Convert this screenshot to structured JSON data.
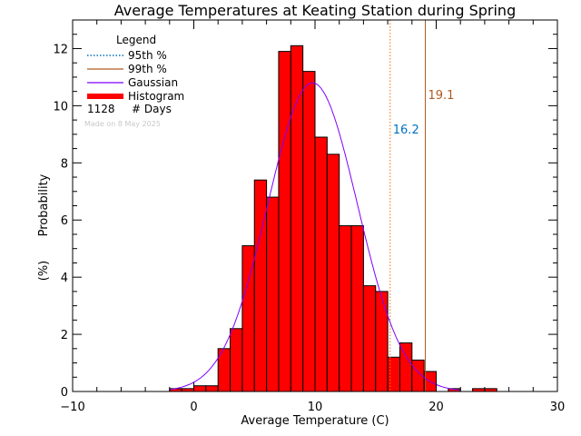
{
  "chart_data": {
    "type": "bar",
    "title": "Average Temperatures at Keating Station during Spring",
    "xlabel": "Average Temperature (C)",
    "ylabel_line1": "Probability",
    "ylabel_line2": "(%)",
    "xlim": [
      -10,
      30
    ],
    "ylim": [
      0,
      13
    ],
    "x_ticks": [
      -10,
      0,
      10,
      20,
      30
    ],
    "y_ticks": [
      0,
      2,
      4,
      6,
      8,
      10,
      12
    ],
    "bin_width": 1,
    "histogram": {
      "name": "Histogram",
      "bin_left_edges": [
        -2,
        -1,
        0,
        1,
        2,
        3,
        4,
        5,
        6,
        7,
        8,
        9,
        10,
        11,
        12,
        13,
        14,
        15,
        16,
        17,
        18,
        19,
        20,
        21,
        22,
        23,
        24
      ],
      "values": [
        0.1,
        0.1,
        0.2,
        0.2,
        1.5,
        2.2,
        5.1,
        7.4,
        6.8,
        11.9,
        12.1,
        11.2,
        8.9,
        8.3,
        5.8,
        5.8,
        3.7,
        3.5,
        1.2,
        1.7,
        1.1,
        0.7,
        0.0,
        0.1,
        0.0,
        0.1,
        0.1
      ],
      "color": "#ff0000"
    },
    "gaussian": {
      "name": "Gaussian",
      "mean": 9.8,
      "sd": 3.7,
      "peak": 10.8,
      "color": "#8000ff"
    },
    "percentiles": [
      {
        "name": "95th %",
        "value": 16.2,
        "label": "16.2",
        "color": "#ff6a00",
        "label_color": "#0070c0",
        "style": "dotted"
      },
      {
        "name": "99th %",
        "value": 19.1,
        "label": "19.1",
        "color": "#b05a1e",
        "label_color": "#b05a1e",
        "style": "solid"
      }
    ],
    "legend": {
      "title": "Legend",
      "entries": [
        "95th %",
        "99th %",
        "Gaussian",
        "Histogram"
      ],
      "count_value": "1128",
      "count_label": "# Days",
      "position": "top-left"
    },
    "footnote": "Made on 8 May 2025"
  }
}
